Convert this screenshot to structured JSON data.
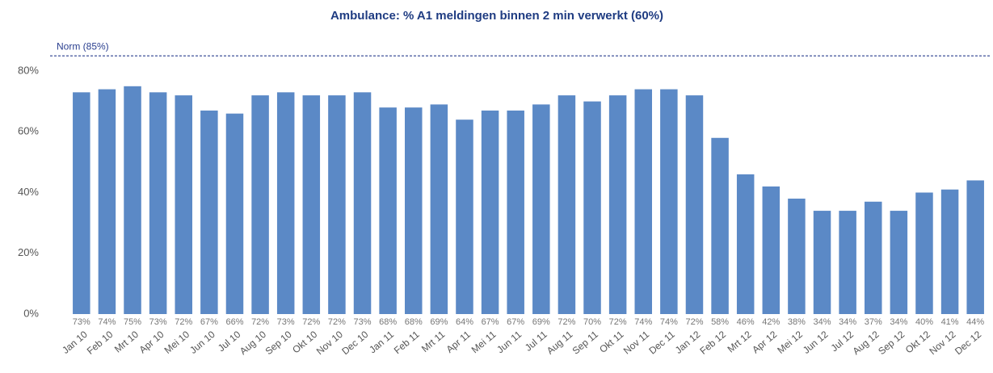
{
  "chart_data": {
    "type": "bar",
    "title": "Ambulance: % A1 meldingen binnen 2 min verwerkt (60%)",
    "categories": [
      "Jan 10",
      "Feb 10",
      "Mrt 10",
      "Apr 10",
      "Mei 10",
      "Jun 10",
      "Jul 10",
      "Aug 10",
      "Sep 10",
      "Okt 10",
      "Nov 10",
      "Dec 10",
      "Jan 11",
      "Feb 11",
      "Mrt 11",
      "Apr 11",
      "Mei 11",
      "Jun 11",
      "Jul 11",
      "Aug 11",
      "Sep 11",
      "Okt 11",
      "Nov 11",
      "Dec 11",
      "Jan 12",
      "Feb 12",
      "Mrt 12",
      "Apr 12",
      "Mei 12",
      "Jun 12",
      "Jul 12",
      "Aug 12",
      "Sep 12",
      "Okt 12",
      "Nov 12",
      "Dec 12"
    ],
    "values": [
      73,
      74,
      75,
      73,
      72,
      67,
      66,
      72,
      73,
      72,
      72,
      73,
      68,
      68,
      69,
      64,
      67,
      67,
      69,
      72,
      70,
      72,
      74,
      74,
      72,
      58,
      46,
      42,
      38,
      34,
      34,
      37,
      34,
      40,
      41,
      44
    ],
    "value_labels": [
      "73%",
      "74%",
      "75%",
      "73%",
      "72%",
      "67%",
      "66%",
      "72%",
      "73%",
      "72%",
      "72%",
      "73%",
      "68%",
      "68%",
      "69%",
      "64%",
      "67%",
      "67%",
      "69%",
      "72%",
      "70%",
      "72%",
      "74%",
      "74%",
      "72%",
      "58%",
      "46%",
      "42%",
      "38%",
      "34%",
      "34%",
      "37%",
      "34%",
      "40%",
      "41%",
      "44%"
    ],
    "color": "#5b89c6",
    "ylim": [
      0,
      80
    ],
    "yticks": [
      {
        "value": 0,
        "label": "0%"
      },
      {
        "value": 20,
        "label": "20%"
      },
      {
        "value": 40,
        "label": "40%"
      },
      {
        "value": 60,
        "label": "60%"
      },
      {
        "value": 80,
        "label": "80%"
      }
    ],
    "norm": {
      "value": 85,
      "label": "Norm (85%)"
    },
    "grid": false
  }
}
